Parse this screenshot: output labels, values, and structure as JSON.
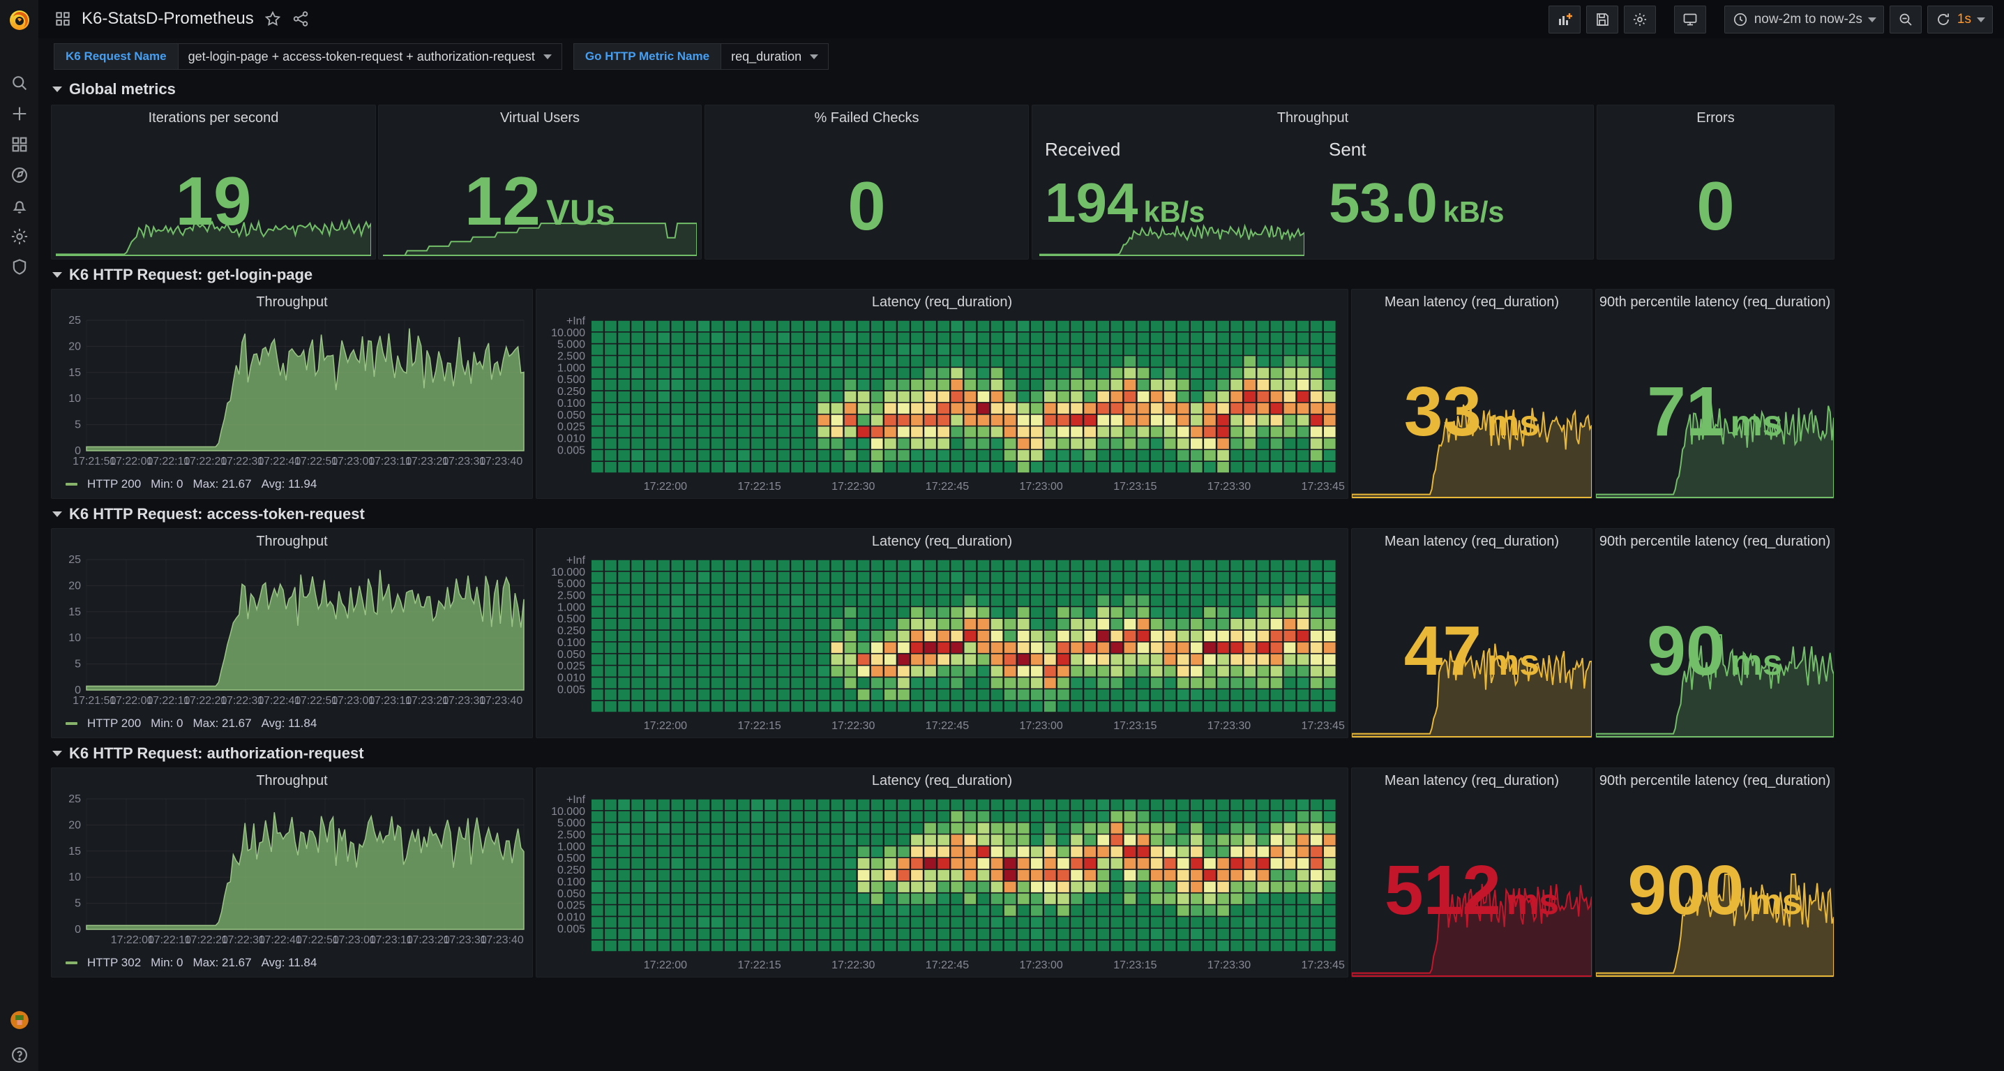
{
  "nav": {
    "title": "K6-StatsD-Prometheus",
    "time_range": "now-2m to now-2s",
    "refresh": "1s"
  },
  "variables": [
    {
      "label": "K6 Request Name",
      "value": "get-login-page + access-token-request + authorization-request"
    },
    {
      "label": "Go HTTP Metric Name",
      "value": "req_duration"
    }
  ],
  "colors": {
    "green": "#73bf69",
    "yellow": "#eab839",
    "red": "#c4162a",
    "orange": "#ff9830",
    "blue": "#459ff3"
  },
  "global_row": {
    "header": "Global metrics",
    "iterations": {
      "title": "Iterations per second",
      "value": "19"
    },
    "vus": {
      "title": "Virtual Users",
      "value": "12",
      "unit": "VUs"
    },
    "failed": {
      "title": "% Failed Checks",
      "value": "0"
    },
    "throughput": {
      "title": "Throughput",
      "received_label": "Received",
      "received_value": "194",
      "received_unit": "kB/s",
      "sent_label": "Sent",
      "sent_value": "53.0",
      "sent_unit": "kB/s"
    },
    "errors": {
      "title": "Errors",
      "value": "0"
    }
  },
  "rows": [
    {
      "header": "K6 HTTP Request: get-login-page",
      "tp_title": "Throughput",
      "hm_title": "Latency (req_duration)",
      "mean_title": "Mean latency (req_duration)",
      "mean_value": "33",
      "mean_unit": "ms",
      "p90_title": "90th percentile latency (req_duration)",
      "p90_value": "71",
      "p90_unit": "ms",
      "legend": {
        "series": "HTTP 200",
        "min": "Min: 0",
        "max": "Max: 21.67",
        "avg": "Avg: 11.94"
      }
    },
    {
      "header": "K6 HTTP Request: access-token-request",
      "tp_title": "Throughput",
      "hm_title": "Latency (req_duration)",
      "mean_title": "Mean latency (req_duration)",
      "mean_value": "47",
      "mean_unit": "ms",
      "p90_title": "90th percentile latency (req_duration)",
      "p90_value": "90",
      "p90_unit": "ms",
      "legend": {
        "series": "HTTP 200",
        "min": "Min: 0",
        "max": "Max: 21.67",
        "avg": "Avg: 11.84"
      }
    },
    {
      "header": "K6 HTTP Request: authorization-request",
      "tp_title": "Throughput",
      "hm_title": "Latency (req_duration)",
      "mean_title": "Mean latency (req_duration)",
      "mean_value": "512",
      "mean_unit": "ms",
      "p90_title": "90th percentile latency (req_duration)",
      "p90_value": "900",
      "p90_unit": "ms",
      "legend": {
        "series": "HTTP 302",
        "min": "Min: 0",
        "max": "Max: 21.67",
        "avg": "Avg: 11.84"
      }
    }
  ],
  "chart_data": [
    {
      "id": "spark-iterations",
      "type": "spark",
      "color": "#73bf69",
      "alpha": 0.16,
      "seed": 3,
      "rise": 0.22,
      "mode": "noise"
    },
    {
      "id": "spark-vus",
      "type": "spark",
      "color": "#73bf69",
      "alpha": 0.16,
      "seed": 5,
      "rise": 0.05,
      "mode": "steps"
    },
    {
      "id": "spark-received",
      "type": "spark",
      "color": "#73bf69",
      "alpha": 0.16,
      "seed": 7,
      "rise": 0.3,
      "mode": "noise"
    },
    {
      "id": "tp-0",
      "type": "area",
      "seed": 11,
      "rise": 0.3,
      "series": [
        {
          "name": "HTTP 200",
          "min": 0,
          "max": 21.67,
          "avg": 11.94
        }
      ],
      "ylim": [
        0,
        25
      ],
      "y_ticks": [
        "25",
        "20",
        "15",
        "10",
        "5",
        "0"
      ],
      "x_ticks": [
        "17:21:50",
        "17:22:00",
        "17:22:10",
        "17:22:20",
        "17:22:30",
        "17:22:40",
        "17:22:50",
        "17:23:00",
        "17:23:10",
        "17:23:20",
        "17:23:30",
        "17:23:40"
      ],
      "tick_f0": 0.018,
      "tick_df": 0.0845
    },
    {
      "id": "hm-0",
      "type": "heatmap",
      "seed": 21,
      "hot_start": 0.31,
      "band_row": 3.6,
      "drift": 1.2,
      "y_buckets": [
        "+Inf",
        "10.000",
        "5.000",
        "2.500",
        "1.000",
        "0.500",
        "0.250",
        "0.100",
        "0.050",
        "0.025",
        "0.010",
        "0.005"
      ],
      "x_ticks": [
        "17:22:00",
        "17:22:15",
        "17:22:30",
        "17:22:45",
        "17:23:00",
        "17:23:15",
        "17:23:30",
        "17:23:45"
      ],
      "tick_f0": 0.1,
      "tick_df": 0.126
    },
    {
      "id": "mean-0",
      "type": "spark",
      "color": "#eab839",
      "alpha": 0.22,
      "seed": 31,
      "rise": 0.33,
      "mode": "noise"
    },
    {
      "id": "p90-0",
      "type": "spark",
      "color": "#73bf69",
      "alpha": 0.22,
      "seed": 32,
      "rise": 0.33,
      "mode": "noise",
      "spikes": [
        {
          "p": 0.47,
          "m": 1.7
        }
      ]
    },
    {
      "id": "tp-1",
      "type": "area",
      "seed": 12,
      "rise": 0.3,
      "series": [
        {
          "name": "HTTP 200",
          "min": 0,
          "max": 21.67,
          "avg": 11.84
        }
      ],
      "ylim": [
        0,
        25
      ],
      "y_ticks": [
        "25",
        "20",
        "15",
        "10",
        "5",
        "0"
      ],
      "x_ticks": [
        "17:21:50",
        "17:22:00",
        "17:22:10",
        "17:22:20",
        "17:22:30",
        "17:22:40",
        "17:22:50",
        "17:23:00",
        "17:23:10",
        "17:23:20",
        "17:23:30",
        "17:23:40"
      ],
      "tick_f0": 0.018,
      "tick_df": 0.0845
    },
    {
      "id": "hm-1",
      "type": "heatmap",
      "seed": 22,
      "hot_start": 0.33,
      "band_row": 4.3,
      "drift": 0.9,
      "y_buckets": [
        "+Inf",
        "10.000",
        "5.000",
        "2.500",
        "1.000",
        "0.500",
        "0.250",
        "0.100",
        "0.050",
        "0.025",
        "0.010",
        "0.005"
      ],
      "x_ticks": [
        "17:22:00",
        "17:22:15",
        "17:22:30",
        "17:22:45",
        "17:23:00",
        "17:23:15",
        "17:23:30",
        "17:23:45"
      ],
      "tick_f0": 0.1,
      "tick_df": 0.126
    },
    {
      "id": "mean-1",
      "type": "spark",
      "color": "#eab839",
      "alpha": 0.22,
      "seed": 33,
      "rise": 0.33,
      "mode": "noise"
    },
    {
      "id": "p90-1",
      "type": "spark",
      "color": "#73bf69",
      "alpha": 0.22,
      "seed": 34,
      "rise": 0.33,
      "mode": "noise",
      "spikes": [
        {
          "p": 0.52,
          "m": 1.9
        }
      ]
    },
    {
      "id": "tp-2",
      "type": "area",
      "seed": 13,
      "rise": 0.3,
      "series": [
        {
          "name": "HTTP 302",
          "min": 0,
          "max": 21.67,
          "avg": 11.84
        }
      ],
      "ylim": [
        0,
        25
      ],
      "y_ticks": [
        "25",
        "20",
        "15",
        "10",
        "5",
        "0"
      ],
      "x_ticks": [
        "17:22:00",
        "17:22:10",
        "17:22:20",
        "17:22:30",
        "17:22:40",
        "17:22:50",
        "17:23:00",
        "17:23:10",
        "17:23:20",
        "17:23:30",
        "17:23:40"
      ],
      "tick_f0": 0.105,
      "tick_df": 0.0845
    },
    {
      "id": "hm-2",
      "type": "heatmap",
      "seed": 23,
      "hot_start": 0.35,
      "band_row": 6.8,
      "drift": 0.5,
      "y_buckets": [
        "+Inf",
        "10.000",
        "5.000",
        "2.500",
        "1.000",
        "0.500",
        "0.250",
        "0.100",
        "0.050",
        "0.025",
        "0.010",
        "0.005"
      ],
      "x_ticks": [
        "17:22:00",
        "17:22:15",
        "17:22:30",
        "17:22:45",
        "17:23:00",
        "17:23:15",
        "17:23:30",
        "17:23:45"
      ],
      "tick_f0": 0.1,
      "tick_df": 0.126
    },
    {
      "id": "mean-2",
      "type": "spark",
      "color": "#c4162a",
      "alpha": 0.25,
      "seed": 35,
      "rise": 0.33,
      "mode": "noise"
    },
    {
      "id": "p90-2",
      "type": "spark",
      "color": "#eab839",
      "alpha": 0.25,
      "seed": 36,
      "rise": 0.33,
      "mode": "noise",
      "spikes": [
        {
          "p": 0.55,
          "m": 2.6
        },
        {
          "p": 0.83,
          "m": 2.2
        }
      ]
    }
  ]
}
